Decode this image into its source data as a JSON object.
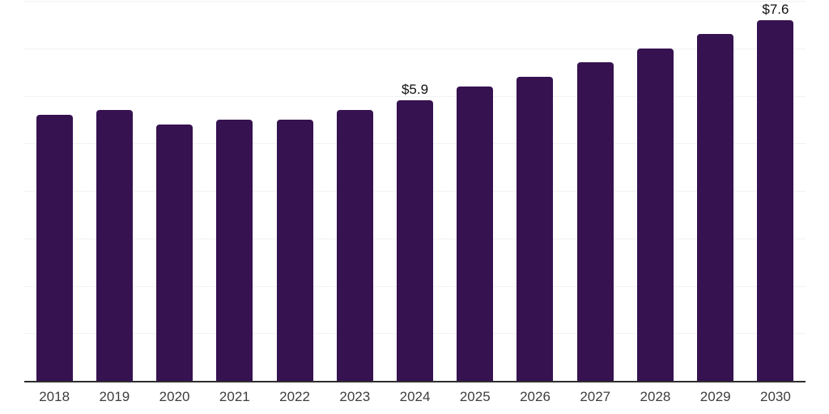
{
  "chart_data": {
    "type": "bar",
    "title": "",
    "xlabel": "",
    "ylabel": "",
    "categories": [
      "2018",
      "2019",
      "2020",
      "2021",
      "2022",
      "2023",
      "2024",
      "2025",
      "2026",
      "2027",
      "2028",
      "2029",
      "2030"
    ],
    "values": [
      5.6,
      5.7,
      5.4,
      5.5,
      5.5,
      5.7,
      5.9,
      6.2,
      6.4,
      6.7,
      7.0,
      7.3,
      7.6
    ],
    "data_labels": [
      null,
      null,
      null,
      null,
      null,
      null,
      "$5.9",
      null,
      null,
      null,
      null,
      null,
      "$7.6"
    ],
    "ylim": [
      0,
      8
    ],
    "grid_step": 1,
    "grid_visible": true,
    "y_tick_labels_visible": false,
    "legend_position": "none",
    "colors": {
      "bar": "#361250",
      "gridline": "#f2f2f2",
      "axis_line": "#2e2e2e",
      "tick_label": "#3d3d3d",
      "data_label": "#111111",
      "background": "#ffffff"
    }
  }
}
